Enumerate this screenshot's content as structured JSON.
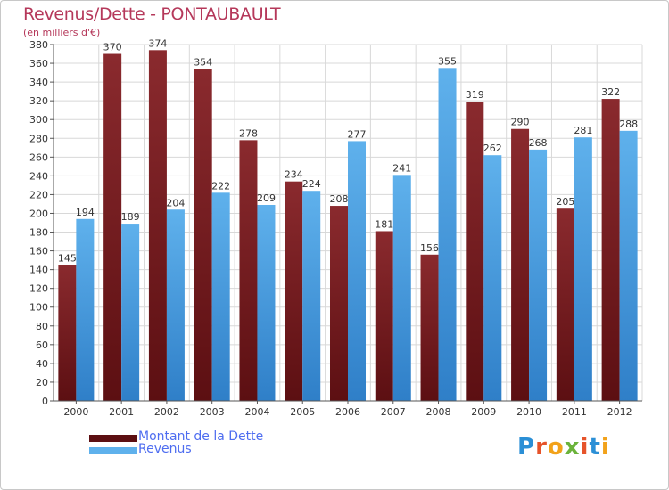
{
  "header": {
    "title": "Revenus/Dette - PONTAUBAULT",
    "subtitle": "(en milliers d'€)"
  },
  "colors": {
    "debt_top": "#8a2a2e",
    "debt_bottom": "#5c0f12",
    "revenue_top": "#5fb1ec",
    "revenue_bottom": "#2f7fc8",
    "grid": "#d8d8d8",
    "title": "#b5385a",
    "legend_text": "#4e6df0"
  },
  "chart_data": {
    "type": "bar",
    "categories": [
      "2000",
      "2001",
      "2002",
      "2003",
      "2004",
      "2005",
      "2006",
      "2007",
      "2008",
      "2009",
      "2010",
      "2011",
      "2012"
    ],
    "series": [
      {
        "name": "Montant de la Dette",
        "values": [
          145,
          370,
          374,
          354,
          278,
          234,
          208,
          181,
          156,
          319,
          290,
          205,
          322
        ]
      },
      {
        "name": "Revenus",
        "values": [
          194,
          189,
          204,
          222,
          209,
          224,
          277,
          241,
          355,
          262,
          268,
          281,
          288
        ]
      }
    ],
    "ylim": [
      0,
      380
    ],
    "yticks": [
      0,
      20,
      40,
      60,
      80,
      100,
      120,
      140,
      160,
      180,
      200,
      220,
      240,
      260,
      280,
      300,
      320,
      340,
      360,
      380
    ],
    "grid": true,
    "legend": "bottom-left"
  },
  "logo": {
    "letters": [
      "P",
      "r",
      "o",
      "x",
      "i",
      "t",
      "i"
    ],
    "colors": [
      "#2b8fd6",
      "#e6532a",
      "#f2a21a",
      "#6bb33b",
      "#e6532a",
      "#2b8fd6",
      "#f2a21a"
    ]
  }
}
